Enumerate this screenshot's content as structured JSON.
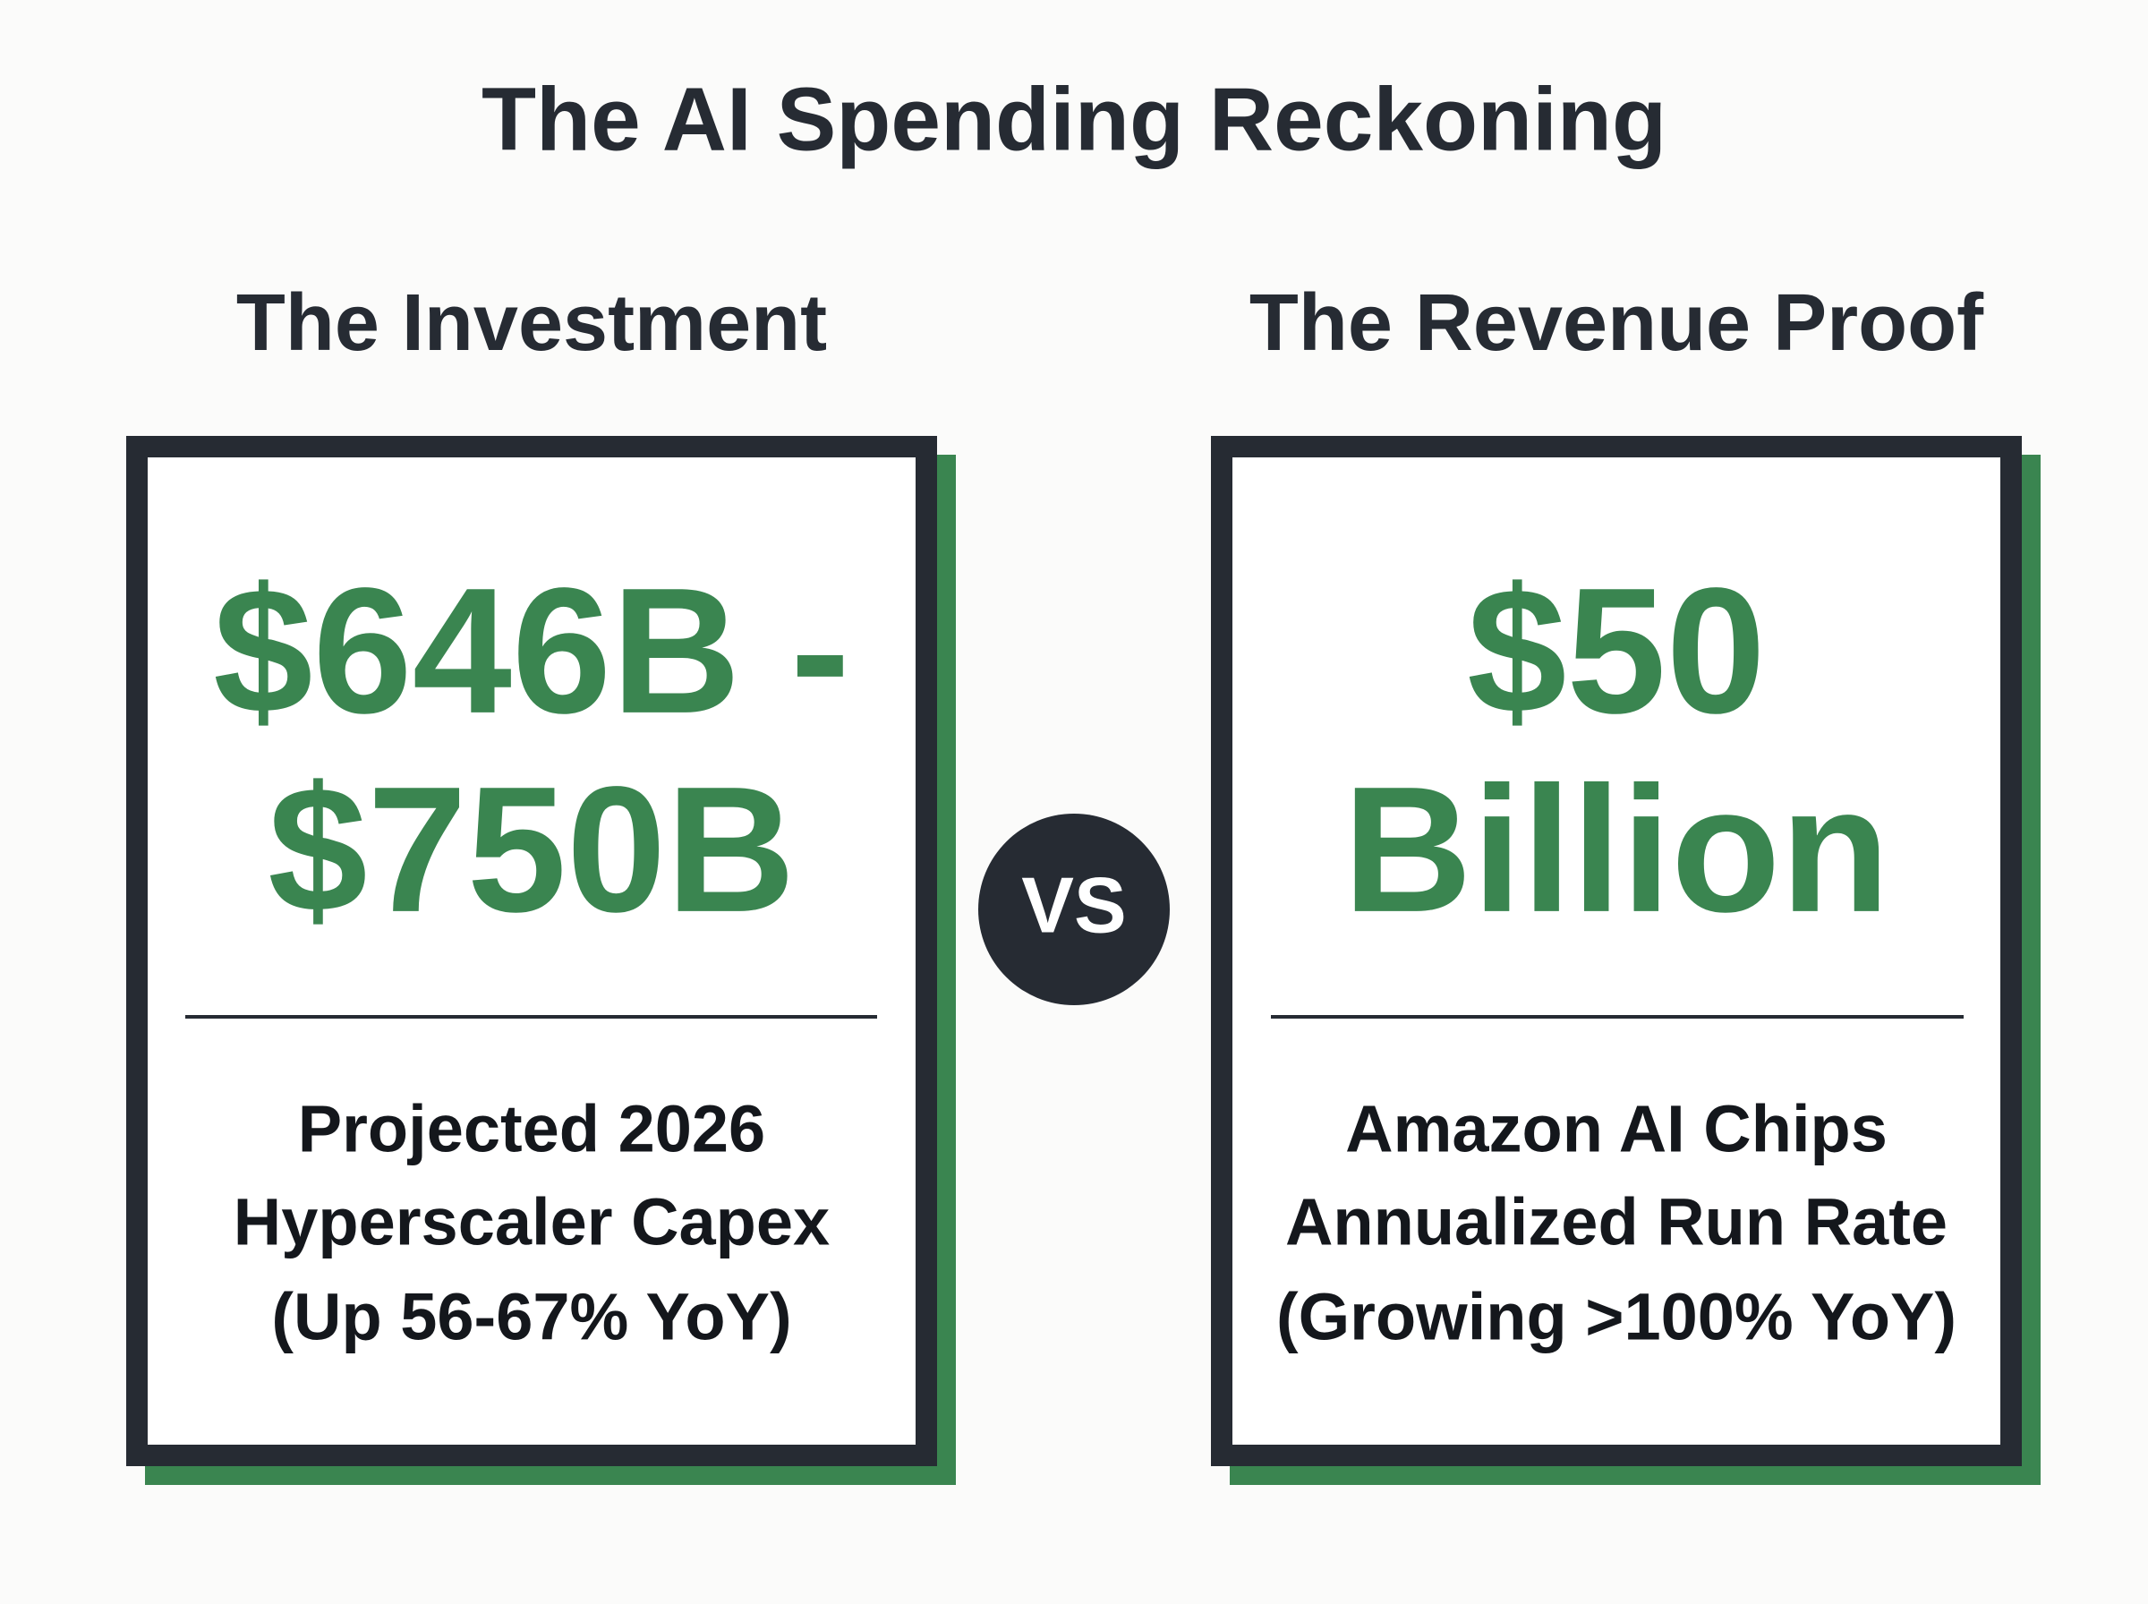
{
  "title": "The AI Spending Reckoning",
  "panels": [
    {
      "heading": "The Investment",
      "value_lines": [
        "$646B -",
        "$750B"
      ],
      "description_lines": [
        "Projected 2026",
        "Hyperscaler Capex",
        "(Up 56-67% YoY)"
      ]
    },
    {
      "heading": "The Revenue Proof",
      "value_lines": [
        "$50",
        "Billion"
      ],
      "description_lines": [
        "Amazon AI Chips",
        "Annualized Run Rate",
        "(Growing >100% YoY)"
      ]
    }
  ],
  "versus": "VS"
}
